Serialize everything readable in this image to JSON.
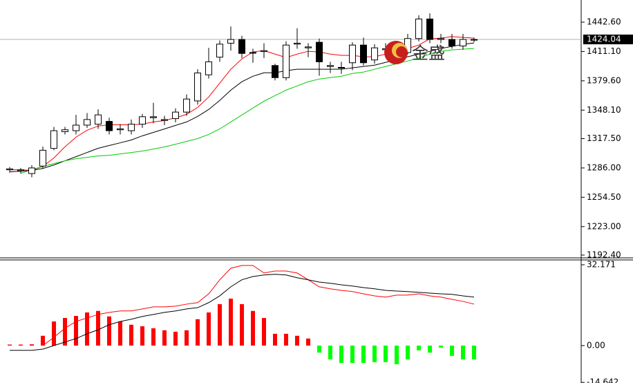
{
  "chart_data": [
    {
      "type": "candlestick",
      "open": [
        1284,
        1283,
        1280,
        1288,
        1307,
        1325,
        1326,
        1332,
        1333,
        1336,
        1327,
        1326,
        1333,
        1340,
        1337,
        1339,
        1346,
        1358,
        1386,
        1405,
        1420,
        1424,
        1410,
        1411,
        1396,
        1383,
        1419,
        1415,
        1421,
        1395,
        1394,
        1399,
        1418,
        1402,
        1413,
        1412,
        1410,
        1425,
        1446,
        1424,
        1424,
        1417,
        1424
      ],
      "high": [
        1287,
        1286,
        1289,
        1309,
        1330,
        1330,
        1343,
        1345,
        1349,
        1340,
        1333,
        1338,
        1344,
        1356,
        1342,
        1350,
        1365,
        1392,
        1415,
        1423,
        1438,
        1428,
        1414,
        1420,
        1398,
        1422,
        1436,
        1420,
        1425,
        1400,
        1400,
        1421,
        1426,
        1419,
        1420,
        1422,
        1430,
        1450,
        1452,
        1430,
        1430,
        1430,
        1426
      ],
      "low": [
        1281,
        1280,
        1276,
        1285,
        1305,
        1322,
        1322,
        1329,
        1328,
        1322,
        1322,
        1322,
        1329,
        1334,
        1332,
        1335,
        1342,
        1354,
        1382,
        1400,
        1412,
        1404,
        1399,
        1404,
        1380,
        1380,
        1414,
        1405,
        1385,
        1388,
        1387,
        1391,
        1396,
        1398,
        1405,
        1408,
        1408,
        1422,
        1420,
        1420,
        1414,
        1413,
        1421
      ],
      "close": [
        1285,
        1284,
        1286,
        1305,
        1326,
        1327,
        1332,
        1338,
        1343,
        1326,
        1328,
        1333,
        1341,
        1341,
        1338,
        1346,
        1360,
        1388,
        1400,
        1419,
        1424,
        1409,
        1410,
        1412,
        1383,
        1418,
        1420,
        1416,
        1400,
        1396,
        1394,
        1418,
        1399,
        1415,
        1414,
        1416,
        1425,
        1446,
        1424,
        1425,
        1417,
        1424,
        1424
      ],
      "up_color": "#ffffff",
      "down_color": "#000000",
      "series": [
        {
          "color": "#ff0000",
          "values": [
            1284.0,
            1284.0,
            1283.3,
            1287.7,
            1296.7,
            1308.7,
            1319.1,
            1326.5,
            1331.0,
            1332.4,
            1332.4,
            1332.4,
            1333.1,
            1335.4,
            1336.9,
            1339.9,
            1343.6,
            1351.0,
            1362.2,
            1377.1,
            1392.0,
            1403.1,
            1410.6,
            1412.1,
            1408.3,
            1404.6,
            1408.3,
            1411.3,
            1410.6,
            1408.3,
            1406.9,
            1406.9,
            1405.4,
            1405.4,
            1408.3,
            1409.8,
            1414.3,
            1418.0,
            1424.7,
            1425.5,
            1427.0,
            1426.2,
            1425.5
          ]
        },
        {
          "color": "#000000",
          "values": [
            1281.8,
            1282.5,
            1283.3,
            1285.5,
            1289.2,
            1293.7,
            1298.1,
            1302.6,
            1307.1,
            1310.1,
            1313.0,
            1316.0,
            1320.5,
            1324.2,
            1327.9,
            1331.7,
            1335.4,
            1341.3,
            1348.8,
            1358.5,
            1369.6,
            1378.6,
            1384.5,
            1388.2,
            1388.2,
            1390.5,
            1392.0,
            1392.0,
            1392.0,
            1392.0,
            1392.0,
            1393.5,
            1395.0,
            1396.4,
            1399.4,
            1402.4,
            1405.4,
            1408.3,
            1411.3,
            1414.3,
            1416.5,
            1418.8,
            1420.3
          ]
        },
        {
          "color": "#00cc00",
          "values": [
            null,
            1280.3,
            1284.0,
            1287.7,
            1290.7,
            1293.7,
            1295.9,
            1297.4,
            1298.9,
            1299.6,
            1301.1,
            1302.6,
            1304.1,
            1306.3,
            1308.6,
            1311.5,
            1314.5,
            1317.5,
            1322.0,
            1327.9,
            1335.4,
            1342.8,
            1350.3,
            1357.7,
            1363.7,
            1369.6,
            1374.1,
            1378.6,
            1381.5,
            1383.0,
            1384.5,
            1387.5,
            1389.0,
            1392.0,
            1395.0,
            1397.9,
            1400.9,
            1403.9,
            1408.3,
            1411.3,
            1412.8,
            1413.6,
            1414.3
          ]
        }
      ],
      "current": {
        "value": 1424.04,
        "label": "1424.04"
      },
      "watermark": "金盛",
      "ylim": [
        1189.4,
        1466.4
      ],
      "yticks": [
        {
          "value": 1192.4,
          "label": "1192.40"
        },
        {
          "value": 1223,
          "label": "1223.00"
        },
        {
          "value": 1254.5,
          "label": "1254.50"
        },
        {
          "value": 1286,
          "label": "1286.00"
        },
        {
          "value": 1317.5,
          "label": "1317.50"
        },
        {
          "value": 1348.1,
          "label": "1348.10"
        },
        {
          "value": 1379.6,
          "label": "1379.60"
        },
        {
          "value": 1411.1,
          "label": "1411.10"
        },
        {
          "value": 1442.6,
          "label": "1442.60"
        }
      ]
    },
    {
      "type": "macd",
      "values": [
        0.4,
        0.4,
        0.5,
        3.9,
        9.6,
        11.0,
        11.8,
        13.2,
        13.8,
        11.6,
        9.6,
        8.3,
        7.7,
        6.9,
        6.1,
        5.5,
        6.1,
        10.5,
        13.2,
        16.5,
        18.7,
        16.5,
        13.8,
        11.0,
        4.7,
        4.7,
        3.9,
        2.8,
        -2.8,
        -5.5,
        -6.9,
        -6.9,
        -6.9,
        -6.6,
        -6.6,
        -7.4,
        -5.5,
        -1.9,
        -2.8,
        -0.8,
        -4.1,
        -5.5,
        -5.5
      ],
      "pos_color": "#ff0000",
      "neg_color": "#00ff00",
      "series": [
        {
          "color": "#ff0000",
          "values": [
            null,
            null,
            null,
            0,
            3.3,
            6.9,
            9.6,
            11.0,
            12.4,
            13.2,
            13.8,
            13.8,
            14.6,
            15.4,
            15.4,
            15.7,
            16.5,
            17.1,
            20.6,
            26.2,
            30.8,
            31.9,
            31.9,
            28.9,
            29.7,
            29.7,
            28.9,
            26.2,
            23.4,
            22.6,
            22.0,
            21.5,
            20.6,
            19.8,
            19.3,
            20.1,
            20.1,
            20.6,
            19.8,
            19.3,
            18.4,
            17.6,
            16.5
          ]
        },
        {
          "color": "#000000",
          "values": [
            -1.9,
            -1.9,
            -1.9,
            -1.4,
            0,
            1.4,
            2.8,
            4.7,
            6.3,
            8.3,
            9.6,
            10.5,
            11.6,
            12.4,
            13.2,
            13.8,
            14.6,
            15.1,
            17.1,
            19.8,
            23.4,
            26.2,
            27.5,
            28.1,
            28.4,
            28.1,
            27.0,
            26.2,
            25.3,
            24.8,
            24.2,
            23.7,
            23.1,
            22.6,
            22.0,
            21.7,
            21.5,
            21.2,
            20.9,
            20.6,
            20.4,
            19.8,
            19.3
          ]
        }
      ],
      "ylim": [
        -14.9,
        34.1
      ],
      "yticks": [
        32.171,
        {
          "value": 0,
          "label": "0.00"
        },
        -14.642
      ]
    }
  ]
}
